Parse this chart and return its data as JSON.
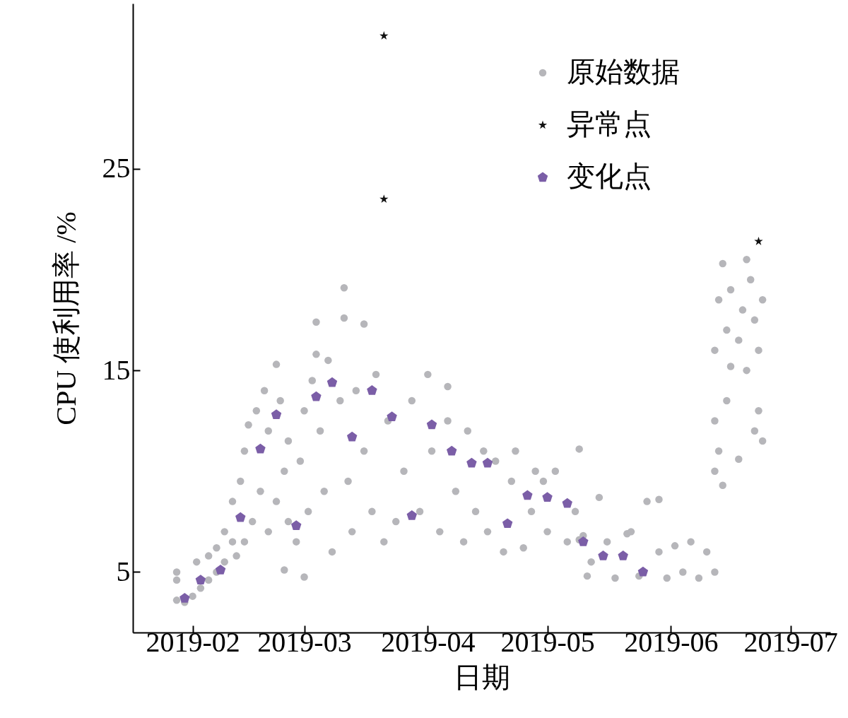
{
  "chart_data": {
    "type": "scatter",
    "xlabel": "日期",
    "ylabel": "CPU 使利用率 /%",
    "xlim": [
      "2019-01-17",
      "2019-07-11"
    ],
    "xticks": [
      "2019-02",
      "2019-03",
      "2019-04",
      "2019-05",
      "2019-06",
      "2019-07"
    ],
    "ylim": [
      2,
      33.2
    ],
    "yticks": [
      5,
      15,
      25
    ],
    "grid": false,
    "legend": "top right",
    "series": [
      {
        "name": "原始数据",
        "color": "#b6b6ba",
        "marker": "circle",
        "x": [
          "2019-01-28",
          "2019-01-28",
          "2019-01-28",
          "2019-01-30",
          "2019-02-01",
          "2019-02-02",
          "2019-02-03",
          "2019-02-05",
          "2019-02-05",
          "2019-02-07",
          "2019-02-07",
          "2019-02-09",
          "2019-02-09",
          "2019-02-11",
          "2019-02-11",
          "2019-02-12",
          "2019-02-13",
          "2019-02-14",
          "2019-02-14",
          "2019-02-15",
          "2019-02-16",
          "2019-02-17",
          "2019-02-18",
          "2019-02-19",
          "2019-02-20",
          "2019-02-20",
          "2019-02-22",
          "2019-02-22",
          "2019-02-23",
          "2019-02-24",
          "2019-02-24",
          "2019-02-25",
          "2019-02-25",
          "2019-02-27",
          "2019-02-28",
          "2019-03-01",
          "2019-03-01",
          "2019-03-02",
          "2019-03-03",
          "2019-03-04",
          "2019-03-04",
          "2019-03-05",
          "2019-03-06",
          "2019-03-07",
          "2019-03-08",
          "2019-03-10",
          "2019-03-11",
          "2019-03-11",
          "2019-03-12",
          "2019-03-13",
          "2019-03-14",
          "2019-03-16",
          "2019-03-16",
          "2019-03-18",
          "2019-03-19",
          "2019-03-21",
          "2019-03-22",
          "2019-03-24",
          "2019-03-26",
          "2019-03-28",
          "2019-03-30",
          "2019-04-01",
          "2019-04-02",
          "2019-04-04",
          "2019-04-06",
          "2019-04-06",
          "2019-04-08",
          "2019-04-10",
          "2019-04-11",
          "2019-04-13",
          "2019-04-15",
          "2019-04-16",
          "2019-04-18",
          "2019-04-20",
          "2019-04-22",
          "2019-04-23",
          "2019-04-25",
          "2019-04-27",
          "2019-04-28",
          "2019-04-30",
          "2019-05-01",
          "2019-05-03",
          "2019-05-06",
          "2019-05-08",
          "2019-05-09",
          "2019-05-09",
          "2019-05-10",
          "2019-05-11",
          "2019-05-12",
          "2019-05-14",
          "2019-05-16",
          "2019-05-18",
          "2019-05-21",
          "2019-05-22",
          "2019-05-24",
          "2019-05-26",
          "2019-05-29",
          "2019-05-29",
          "2019-05-31",
          "2019-06-02",
          "2019-06-04",
          "2019-06-06",
          "2019-06-08",
          "2019-06-10",
          "2019-06-12",
          "2019-06-12",
          "2019-06-12",
          "2019-06-12",
          "2019-06-13",
          "2019-06-13",
          "2019-06-14",
          "2019-06-14",
          "2019-06-15",
          "2019-06-15",
          "2019-06-16",
          "2019-06-16",
          "2019-06-18",
          "2019-06-18",
          "2019-06-19",
          "2019-06-20",
          "2019-06-20",
          "2019-06-21",
          "2019-06-22",
          "2019-06-22",
          "2019-06-23",
          "2019-06-23",
          "2019-06-24",
          "2019-06-24"
        ],
        "values": [
          5.0,
          4.6,
          3.6,
          3.5,
          3.8,
          5.5,
          4.2,
          4.6,
          5.8,
          5.0,
          6.2,
          5.5,
          7.0,
          6.5,
          8.5,
          5.8,
          9.5,
          11.0,
          6.5,
          12.3,
          7.5,
          13.0,
          9.0,
          14.0,
          7.0,
          12.0,
          15.3,
          8.5,
          13.5,
          10.0,
          5.1,
          7.5,
          11.5,
          6.5,
          10.5,
          13.0,
          4.75,
          8.0,
          14.5,
          17.4,
          15.8,
          12.0,
          9.0,
          15.5,
          6.0,
          13.5,
          19.1,
          17.6,
          9.5,
          7.0,
          14.0,
          11.0,
          17.3,
          8.0,
          14.8,
          6.5,
          12.5,
          7.5,
          10.0,
          13.5,
          8.0,
          14.8,
          11.0,
          7.0,
          14.2,
          12.5,
          9.0,
          6.5,
          12.0,
          8.0,
          11.0,
          7.0,
          10.5,
          6.0,
          9.5,
          11.0,
          6.2,
          8.0,
          10.0,
          9.5,
          7.0,
          10.0,
          6.5,
          8.0,
          11.1,
          6.6,
          6.8,
          4.8,
          5.5,
          8.7,
          6.5,
          4.7,
          6.9,
          7.0,
          4.8,
          8.5,
          8.6,
          6.0,
          4.7,
          6.3,
          5.0,
          6.5,
          4.7,
          6.0,
          5.0,
          16.0,
          12.5,
          10.0,
          18.5,
          11.0,
          9.3,
          20.3,
          17.0,
          13.5,
          19.0,
          15.2,
          16.5,
          10.6,
          18.0,
          20.5,
          15.0,
          19.5,
          17.5,
          12.0,
          16.0,
          13.0,
          18.5,
          11.5
        ]
      },
      {
        "name": "异常点",
        "color": "#111111",
        "marker": "star",
        "x": [
          "2019-03-21",
          "2019-03-21",
          "2019-06-23"
        ],
        "values": [
          31.6,
          23.5,
          21.4
        ]
      },
      {
        "name": "变化点",
        "color": "#7b5ea7",
        "x": [
          "2019-01-30",
          "2019-02-03",
          "2019-02-08",
          "2019-02-13",
          "2019-02-18",
          "2019-02-22",
          "2019-02-27",
          "2019-03-04",
          "2019-03-08",
          "2019-03-13",
          "2019-03-18",
          "2019-03-23",
          "2019-03-28",
          "2019-04-02",
          "2019-04-07",
          "2019-04-12",
          "2019-04-16",
          "2019-04-21",
          "2019-04-26",
          "2019-05-01",
          "2019-05-06",
          "2019-05-10",
          "2019-05-15",
          "2019-05-20",
          "2019-05-25"
        ],
        "values": [
          3.7,
          4.6,
          5.1,
          7.7,
          11.1,
          12.8,
          7.3,
          13.7,
          14.4,
          11.7,
          14.0,
          12.7,
          7.8,
          12.3,
          11.0,
          10.4,
          10.4,
          7.4,
          8.8,
          8.7,
          8.4,
          6.5,
          5.8,
          5.8,
          5.0
        ]
      }
    ]
  }
}
